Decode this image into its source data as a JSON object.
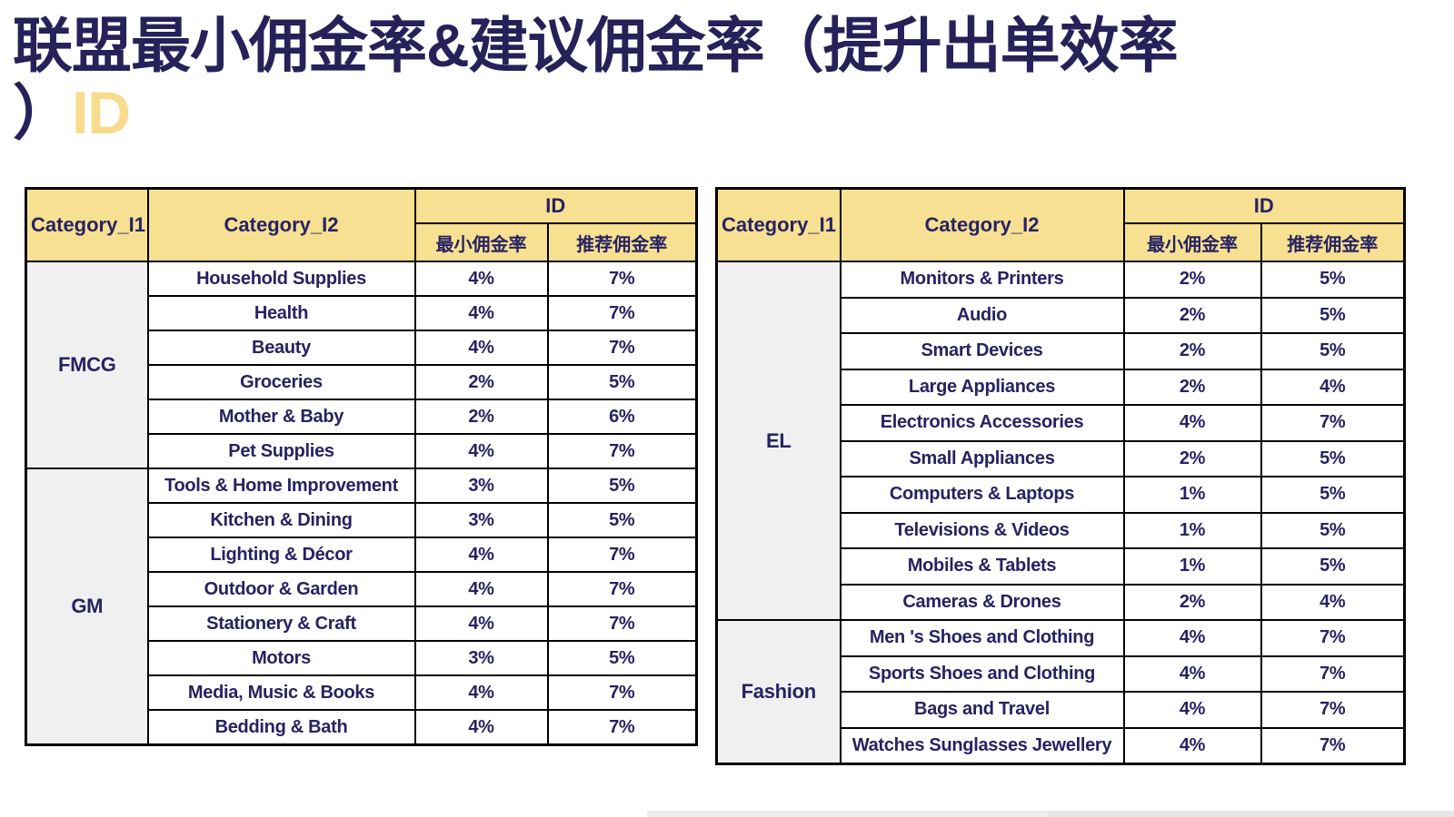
{
  "title": {
    "line1": "联盟最小佣金率&建议佣金率（提升出单效率",
    "line2_prefix": "）",
    "line2_highlight": "ID"
  },
  "colors": {
    "title_navy": "#262159",
    "title_highlight": "#F6DC8C",
    "header_yellow": "#F7E092",
    "table_text_navy": "#272262",
    "category_l1_gray": "#F0F0F0",
    "border_black": "#000000"
  },
  "tables": [
    {
      "headers": {
        "cat1": "Category_I1",
        "cat2": "Category_I2",
        "group": "ID",
        "min": "最小佣金率",
        "rec": "推荐佣金率"
      },
      "groups": [
        {
          "name": "FMCG",
          "rows": [
            {
              "c2": "Household Supplies",
              "min": "4%",
              "rec": "7%"
            },
            {
              "c2": "Health",
              "min": "4%",
              "rec": "7%"
            },
            {
              "c2": "Beauty",
              "min": "4%",
              "rec": "7%"
            },
            {
              "c2": "Groceries",
              "min": "2%",
              "rec": "5%"
            },
            {
              "c2": "Mother & Baby",
              "min": "2%",
              "rec": "6%"
            },
            {
              "c2": "Pet Supplies",
              "min": "4%",
              "rec": "7%"
            }
          ]
        },
        {
          "name": "GM",
          "rows": [
            {
              "c2": "Tools & Home Improvement",
              "min": "3%",
              "rec": "5%"
            },
            {
              "c2": "Kitchen & Dining",
              "min": "3%",
              "rec": "5%"
            },
            {
              "c2": "Lighting & Décor",
              "min": "4%",
              "rec": "7%"
            },
            {
              "c2": "Outdoor & Garden",
              "min": "4%",
              "rec": "7%"
            },
            {
              "c2": "Stationery & Craft",
              "min": "4%",
              "rec": "7%"
            },
            {
              "c2": "Motors",
              "min": "3%",
              "rec": "5%"
            },
            {
              "c2": "Media, Music & Books",
              "min": "4%",
              "rec": "7%"
            },
            {
              "c2": "Bedding & Bath",
              "min": "4%",
              "rec": "7%"
            }
          ]
        }
      ]
    },
    {
      "headers": {
        "cat1": "Category_I1",
        "cat2": "Category_I2",
        "group": "ID",
        "min": "最小佣金率",
        "rec": "推荐佣金率"
      },
      "groups": [
        {
          "name": "EL",
          "rows": [
            {
              "c2": "Monitors & Printers",
              "min": "2%",
              "rec": "5%"
            },
            {
              "c2": "Audio",
              "min": "2%",
              "rec": "5%"
            },
            {
              "c2": "Smart Devices",
              "min": "2%",
              "rec": "5%"
            },
            {
              "c2": "Large Appliances",
              "min": "2%",
              "rec": "4%"
            },
            {
              "c2": "Electronics Accessories",
              "min": "4%",
              "rec": "7%"
            },
            {
              "c2": "Small Appliances",
              "min": "2%",
              "rec": "5%"
            },
            {
              "c2": "Computers & Laptops",
              "min": "1%",
              "rec": "5%"
            },
            {
              "c2": "Televisions & Videos",
              "min": "1%",
              "rec": "5%"
            },
            {
              "c2": "Mobiles & Tablets",
              "min": "1%",
              "rec": "5%"
            },
            {
              "c2": "Cameras & Drones",
              "min": "2%",
              "rec": "4%"
            }
          ]
        },
        {
          "name": "Fashion",
          "rows": [
            {
              "c2": "Men 's Shoes and Clothing",
              "min": "4%",
              "rec": "7%"
            },
            {
              "c2": "Sports Shoes and Clothing",
              "min": "4%",
              "rec": "7%"
            },
            {
              "c2": "Bags and Travel",
              "min": "4%",
              "rec": "7%"
            },
            {
              "c2": "Watches Sunglasses Jewellery",
              "min": "4%",
              "rec": "7%"
            }
          ]
        }
      ]
    }
  ]
}
